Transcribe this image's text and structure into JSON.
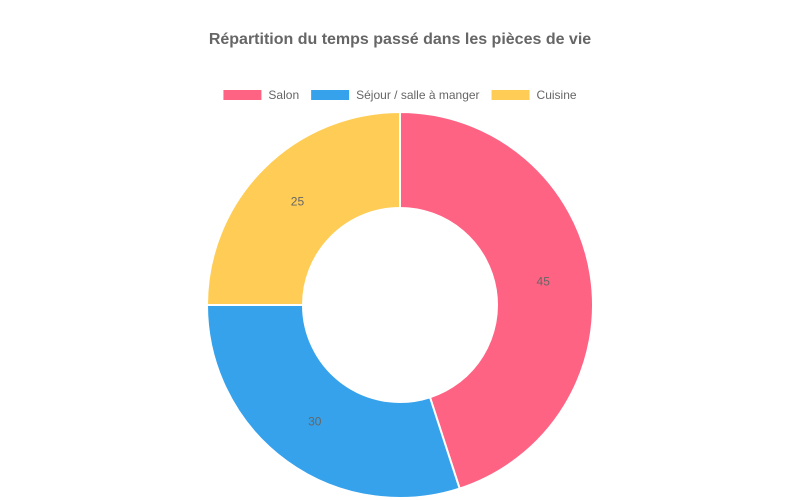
{
  "chart_data": {
    "type": "doughnut",
    "title": "Répartition du temps passé dans les pièces de vie",
    "categories": [
      "Salon",
      "Séjour / salle à manger",
      "Cuisine"
    ],
    "values": [
      45,
      30,
      25
    ],
    "colors": [
      "#ff6384",
      "#36a2eb",
      "#ffcd56"
    ],
    "legend": "top"
  }
}
